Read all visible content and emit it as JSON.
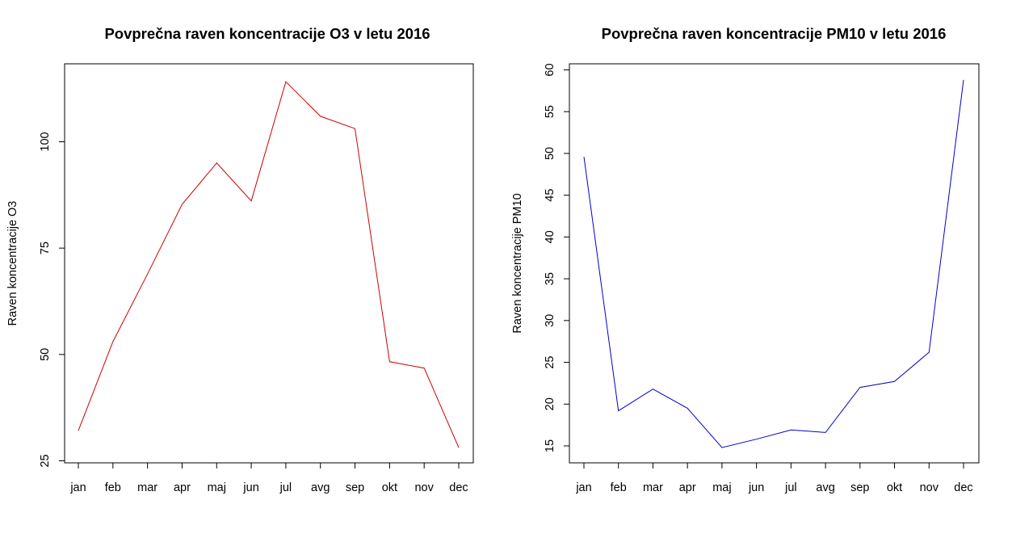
{
  "chart_data": [
    {
      "type": "line",
      "title": "Povprečna raven koncentracije O3 v letu 2016",
      "xlabel": "",
      "ylabel": "Raven koncentracije O3",
      "categories": [
        "jan",
        "feb",
        "mar",
        "apr",
        "maj",
        "jun",
        "jul",
        "avg",
        "sep",
        "okt",
        "nov",
        "dec"
      ],
      "yticks": [
        "25",
        "50",
        "75",
        "100"
      ],
      "ylim": [
        25,
        118
      ],
      "grid": false,
      "series": [
        {
          "color": "#cc0000",
          "values": [
            32.1,
            53.0,
            68.9,
            85.3,
            95.0,
            86.1,
            114.1,
            106.0,
            103.1,
            48.3,
            46.8,
            28.1
          ]
        }
      ]
    },
    {
      "type": "line",
      "title": "Povprečna raven koncentracije PM10 v letu 2016",
      "xlabel": "",
      "ylabel": "Raven koncentracije PM10",
      "categories": [
        "jan",
        "feb",
        "mar",
        "apr",
        "maj",
        "jun",
        "jul",
        "avg",
        "sep",
        "okt",
        "nov",
        "dec"
      ],
      "yticks": [
        "15",
        "20",
        "25",
        "30",
        "35",
        "40",
        "45",
        "50",
        "55",
        "60"
      ],
      "ylim": [
        13,
        61
      ],
      "grid": false,
      "series": [
        {
          "color": "#0000cc",
          "values": [
            49.6,
            19.2,
            21.8,
            19.5,
            14.8,
            15.8,
            16.9,
            16.6,
            22.0,
            22.7,
            26.2,
            58.8
          ]
        }
      ]
    }
  ]
}
